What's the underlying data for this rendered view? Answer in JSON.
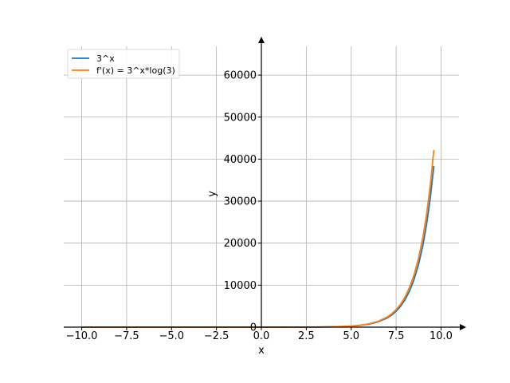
{
  "chart_data": {
    "type": "line",
    "title": "",
    "xlabel": "x",
    "ylabel": "y",
    "xlim": [
      -11,
      11
    ],
    "ylim": [
      0,
      68000
    ],
    "grid": true,
    "legend_position": "top-left",
    "x_ticks": [
      -10,
      -7.5,
      -5,
      -2.5,
      0,
      2.5,
      5,
      7.5,
      10
    ],
    "x_tick_labels": [
      "−10.0",
      "−7.5",
      "−5.0",
      "−2.5",
      "0.0",
      "2.5",
      "5.0",
      "7.5",
      "10.0"
    ],
    "y_ticks": [
      0,
      10000,
      20000,
      30000,
      40000,
      50000,
      60000
    ],
    "y_tick_labels": [
      "0",
      "10000",
      "20000",
      "30000",
      "40000",
      "50000",
      "60000"
    ],
    "series": [
      {
        "name": "3^x",
        "color": "#1f77b4",
        "x": [
          -10,
          -9,
          -8,
          -7,
          -6,
          -5,
          -4,
          -3,
          -2,
          -1,
          0,
          1,
          2,
          3,
          4,
          4.5,
          5,
          5.5,
          6,
          6.5,
          7,
          7.25,
          7.5,
          7.75,
          8,
          8.25,
          8.5,
          8.75,
          9,
          9.2,
          9.4,
          9.6
        ],
        "y": [
          0,
          0,
          0,
          0,
          0,
          0,
          0,
          0,
          0,
          0.3,
          1,
          3,
          9,
          27,
          81,
          140,
          243,
          421,
          729,
          1263,
          2187,
          2878,
          3788,
          4985,
          6561,
          8635,
          11364,
          14956,
          19683,
          24592,
          30725,
          38389
        ]
      },
      {
        "name": "f'(x) = 3^x*log(3)",
        "color": "#ff7f0e",
        "x": [
          -10,
          -9,
          -8,
          -7,
          -6,
          -5,
          -4,
          -3,
          -2,
          -1,
          0,
          1,
          2,
          3,
          4,
          4.5,
          5,
          5.5,
          6,
          6.5,
          7,
          7.25,
          7.5,
          7.75,
          8,
          8.25,
          8.5,
          8.75,
          9,
          9.2,
          9.4,
          9.6
        ],
        "y": [
          0,
          0,
          0,
          0,
          0,
          0,
          0,
          0,
          0,
          0.4,
          1.1,
          3.3,
          9.9,
          29.7,
          89,
          154,
          267,
          462,
          801,
          1388,
          2403,
          3162,
          4161,
          5477,
          7208,
          9486,
          12485,
          16431,
          21624,
          27018,
          33755,
          42175
        ]
      }
    ]
  }
}
